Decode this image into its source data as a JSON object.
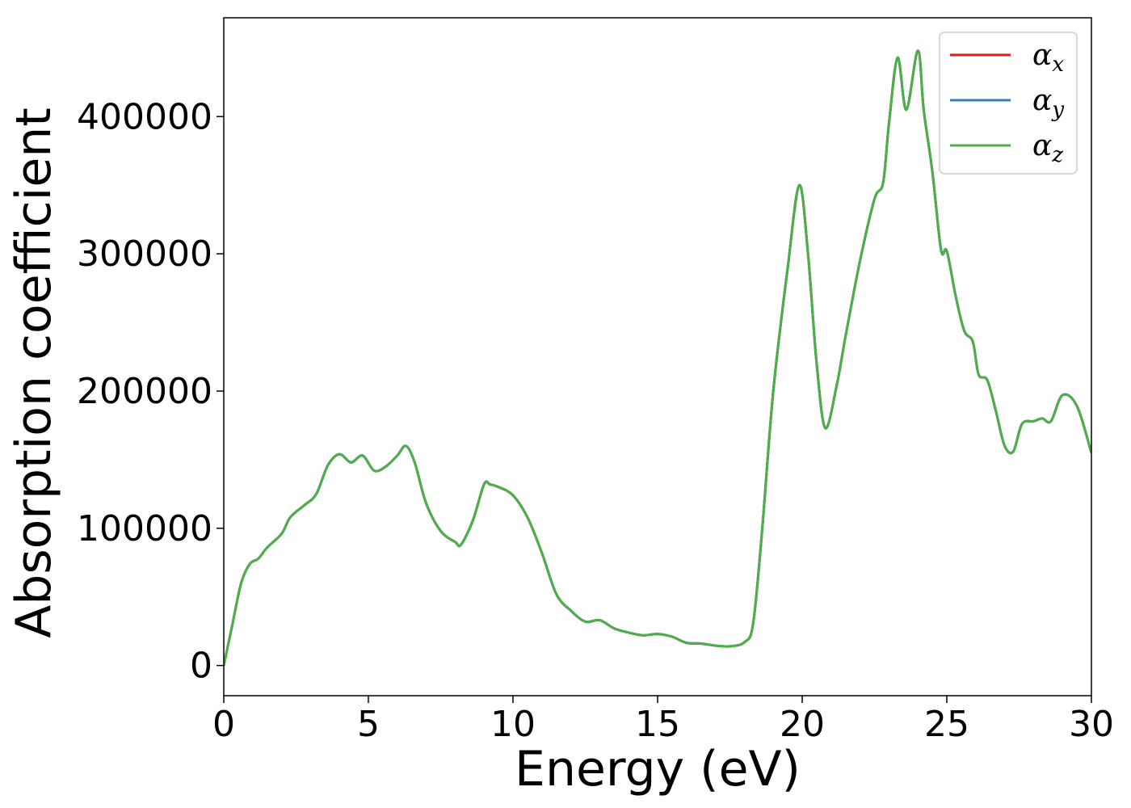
{
  "chart_data": {
    "type": "line",
    "title": "",
    "xlabel": "Energy (eV)",
    "ylabel": "Absorption coefficient",
    "xlim": [
      0,
      30
    ],
    "ylim": [
      -22000,
      472000
    ],
    "xticks": [
      0,
      5,
      10,
      15,
      20,
      25,
      30
    ],
    "yticks": [
      0,
      100000,
      200000,
      300000,
      400000
    ],
    "grid": false,
    "legend": "top-right",
    "x": [
      0,
      0.3,
      0.6,
      0.9,
      1.2,
      1.5,
      2.0,
      2.3,
      2.8,
      3.2,
      3.6,
      4.0,
      4.4,
      4.8,
      5.2,
      5.6,
      6.0,
      6.3,
      6.6,
      7.0,
      7.5,
      8.0,
      8.2,
      8.6,
      9.0,
      9.2,
      9.5,
      10.0,
      10.5,
      11.0,
      11.5,
      12.0,
      12.5,
      13.0,
      13.5,
      14.0,
      14.5,
      15.0,
      15.5,
      16.0,
      16.5,
      17.0,
      17.5,
      18.0,
      18.3,
      18.6,
      19.0,
      19.5,
      19.9,
      20.2,
      20.5,
      20.8,
      21.2,
      21.5,
      22.0,
      22.5,
      22.8,
      23.0,
      23.3,
      23.6,
      24.0,
      24.2,
      24.5,
      24.8,
      25.0,
      25.3,
      25.6,
      25.9,
      26.1,
      26.4,
      26.7,
      27.0,
      27.3,
      27.6,
      28.0,
      28.3,
      28.6,
      29.0,
      29.5,
      30.0
    ],
    "series": [
      {
        "name": "αx",
        "color": "#e41a1c",
        "values": [
          0,
          30000,
          60000,
          74000,
          78000,
          86000,
          96000,
          108000,
          117000,
          125000,
          146000,
          154000,
          148000,
          153000,
          142000,
          145000,
          153000,
          160000,
          148000,
          118000,
          98000,
          90000,
          88000,
          105000,
          132000,
          132000,
          130000,
          124000,
          108000,
          82000,
          52000,
          40000,
          32000,
          33000,
          27000,
          24000,
          22000,
          23000,
          21000,
          16500,
          16000,
          14500,
          14000,
          17000,
          30000,
          95000,
          200000,
          290000,
          350000,
          300000,
          220000,
          173000,
          205000,
          240000,
          295000,
          340000,
          352000,
          395000,
          443000,
          405000,
          448000,
          405000,
          360000,
          303000,
          302000,
          270000,
          244000,
          236000,
          212000,
          208000,
          185000,
          160000,
          156000,
          176000,
          178000,
          180000,
          178000,
          197000,
          189000,
          155000
        ]
      },
      {
        "name": "αy",
        "color": "#377eb8",
        "values": [
          0,
          30000,
          60000,
          74000,
          78000,
          86000,
          96000,
          108000,
          117000,
          125000,
          146000,
          154000,
          148000,
          153000,
          142000,
          145000,
          153000,
          160000,
          148000,
          118000,
          98000,
          90000,
          88000,
          105000,
          132000,
          132000,
          130000,
          124000,
          108000,
          82000,
          52000,
          40000,
          32000,
          33000,
          27000,
          24000,
          22000,
          23000,
          21000,
          16500,
          16000,
          14500,
          14000,
          17000,
          30000,
          95000,
          200000,
          290000,
          350000,
          300000,
          220000,
          173000,
          205000,
          240000,
          295000,
          340000,
          352000,
          395000,
          443000,
          405000,
          448000,
          405000,
          360000,
          303000,
          302000,
          270000,
          244000,
          236000,
          212000,
          208000,
          185000,
          160000,
          156000,
          176000,
          178000,
          180000,
          178000,
          197000,
          189000,
          155000
        ]
      },
      {
        "name": "αz",
        "color": "#4daf4a",
        "values": [
          0,
          30000,
          60000,
          74000,
          78000,
          86000,
          96000,
          108000,
          117000,
          125000,
          146000,
          154000,
          148000,
          153000,
          142000,
          145000,
          153000,
          160000,
          148000,
          118000,
          98000,
          90000,
          88000,
          105000,
          132000,
          132000,
          130000,
          124000,
          108000,
          82000,
          52000,
          40000,
          32000,
          33000,
          27000,
          24000,
          22000,
          23000,
          21000,
          16500,
          16000,
          14500,
          14000,
          17000,
          30000,
          95000,
          200000,
          290000,
          350000,
          300000,
          220000,
          173000,
          205000,
          240000,
          295000,
          340000,
          352000,
          395000,
          443000,
          405000,
          448000,
          405000,
          360000,
          303000,
          302000,
          270000,
          244000,
          236000,
          212000,
          208000,
          185000,
          160000,
          156000,
          176000,
          178000,
          180000,
          178000,
          197000,
          189000,
          155000
        ]
      }
    ]
  }
}
